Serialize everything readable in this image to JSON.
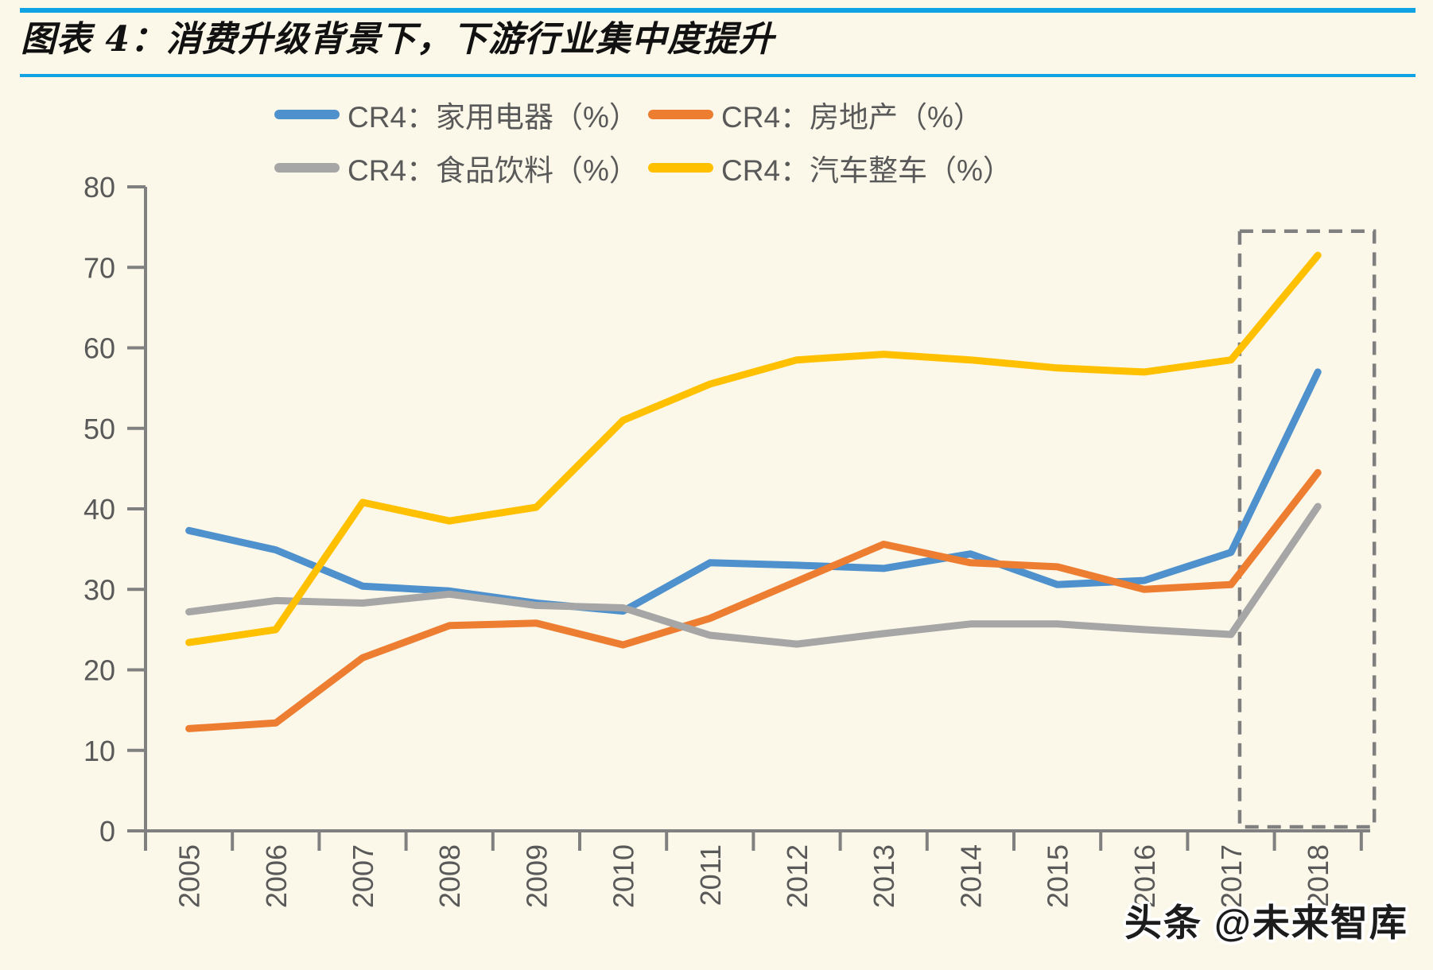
{
  "header": {
    "title": "图表 4：消费升级背景下，下游行业集中度提升"
  },
  "watermark": {
    "text": "头条 @未来智库"
  },
  "chart_data": {
    "type": "line",
    "title": "图表 4：消费升级背景下，下游行业集中度提升",
    "xlabel": "",
    "ylabel": "",
    "ylim": [
      0,
      80
    ],
    "y_ticks": [
      0,
      10,
      20,
      30,
      40,
      50,
      60,
      70,
      80
    ],
    "grid": false,
    "legend_position": "top",
    "categories": [
      "2005",
      "2006",
      "2007",
      "2008",
      "2009",
      "2010",
      "2011",
      "2012",
      "2013",
      "2014",
      "2015",
      "2016",
      "2017",
      "2018"
    ],
    "series": [
      {
        "name": "CR4：家用电器（%）",
        "color": "#4E91CD",
        "values": [
          37.3,
          34.9,
          30.4,
          29.8,
          28.3,
          27.3,
          33.3,
          33.0,
          32.6,
          34.4,
          30.6,
          31.1,
          34.6,
          57.0
        ]
      },
      {
        "name": "CR4：房地产（%）",
        "color": "#ED7D31",
        "values": [
          12.7,
          13.4,
          21.5,
          25.5,
          25.8,
          23.1,
          26.4,
          31.0,
          35.6,
          33.3,
          32.8,
          30.0,
          30.6,
          44.5
        ]
      },
      {
        "name": "CR4：食品饮料（%）",
        "color": "#A6A6A6",
        "values": [
          27.2,
          28.6,
          28.3,
          29.4,
          28.0,
          27.7,
          24.3,
          23.2,
          24.5,
          25.7,
          25.7,
          25.0,
          24.4,
          40.3
        ]
      },
      {
        "name": "CR4：汽车整车（%）",
        "color": "#FFC000",
        "values": [
          23.4,
          25.0,
          40.8,
          38.5,
          40.2,
          51.0,
          55.5,
          58.5,
          59.2,
          58.5,
          57.5,
          57.0,
          58.5,
          71.5
        ]
      }
    ],
    "highlight_box": {
      "year_from": 2017.1,
      "year_to": 2018.65,
      "value_from": 0.5,
      "value_to": 74.5,
      "color": "#7F7F7F"
    },
    "axis_color": "#808080",
    "tick_label_color": "#595959"
  }
}
